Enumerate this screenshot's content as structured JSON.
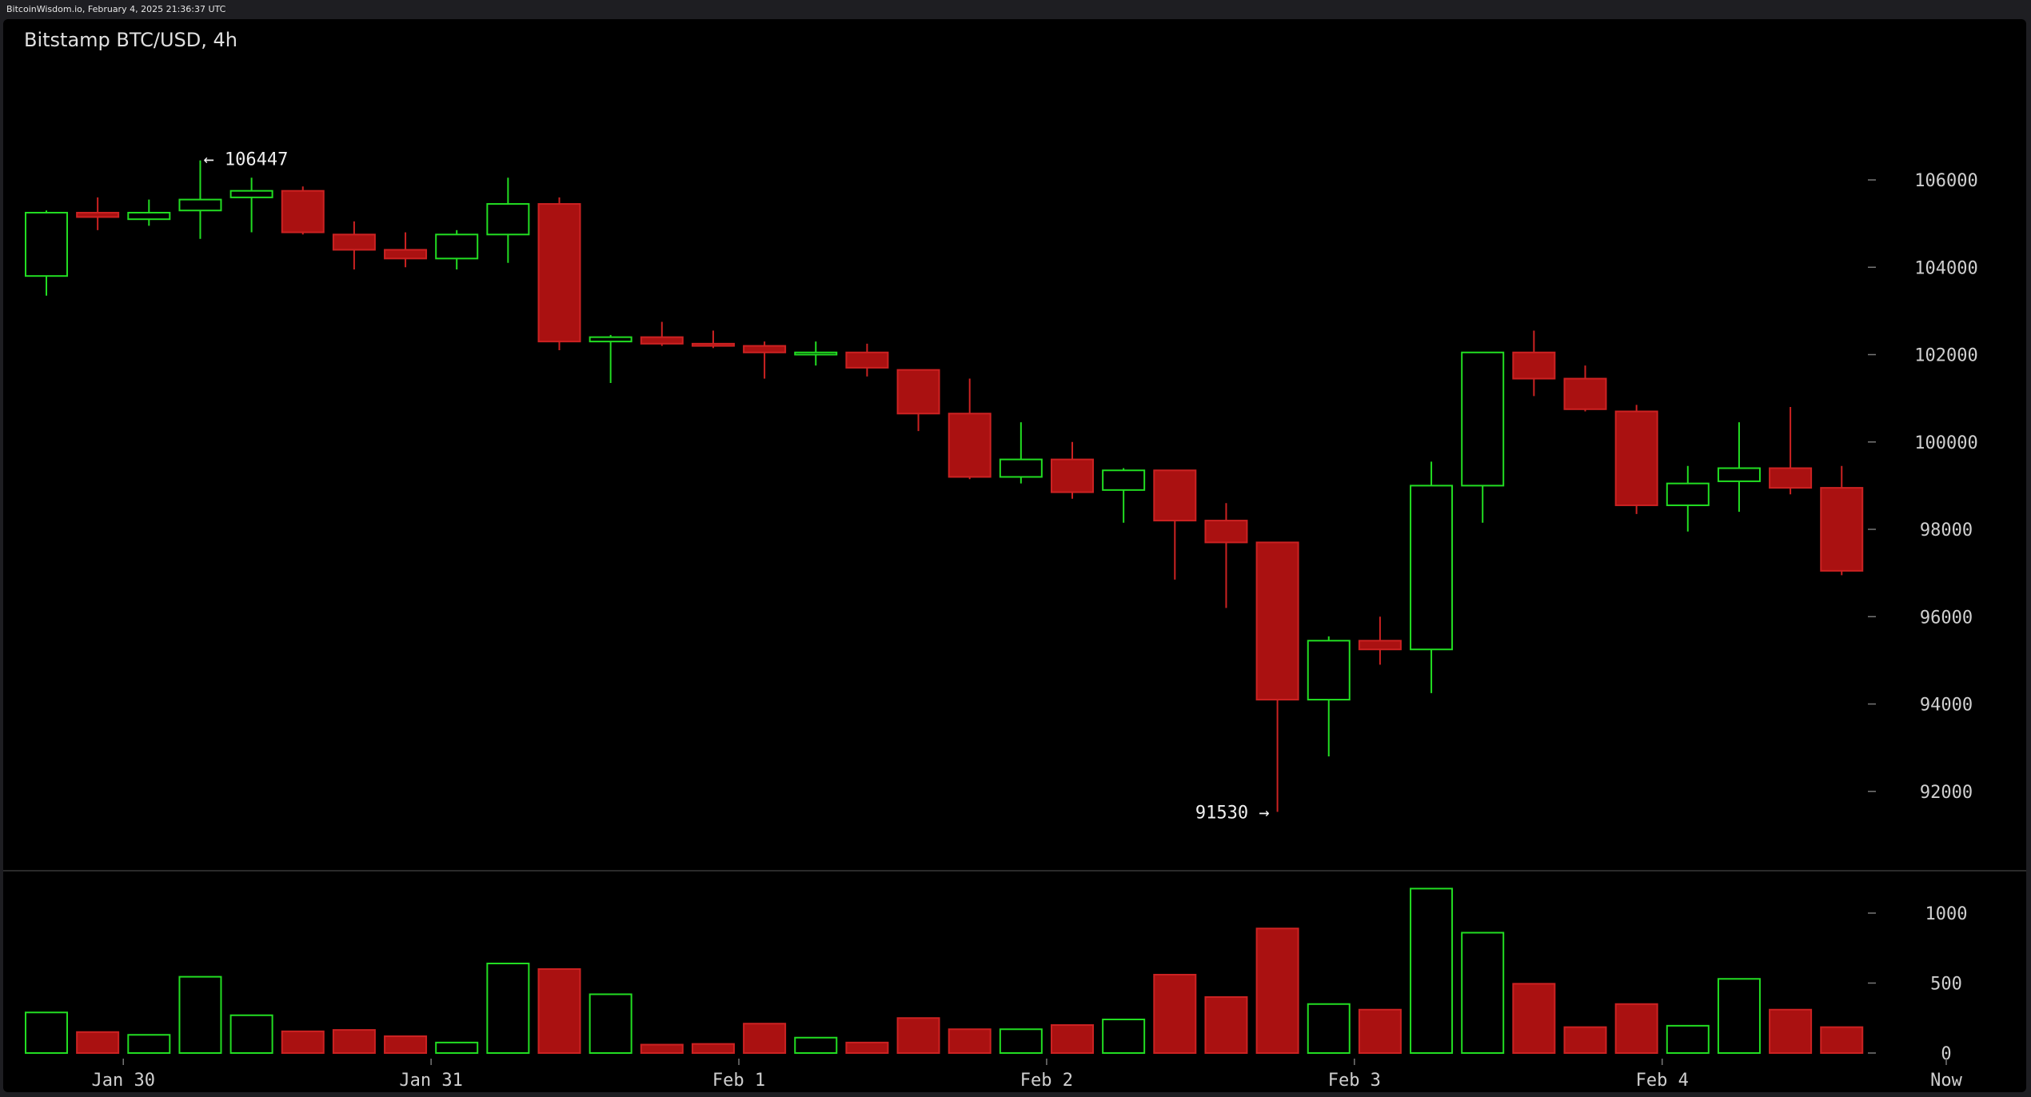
{
  "header": {
    "source_line": "BitcoinWisdom.io, February 4, 2025 21:36:37 UTC",
    "chart_title": "Bitstamp BTC/USD, 4h"
  },
  "chart_data": {
    "type": "candlestick",
    "annotations": {
      "high_label": "← 106447",
      "low_label": "91530 →"
    },
    "price_axis": {
      "ticks": [
        92000,
        94000,
        96000,
        98000,
        100000,
        102000,
        104000,
        106000
      ],
      "range": [
        90000,
        107300
      ]
    },
    "volume_axis": {
      "ticks": [
        0,
        500,
        1000
      ],
      "range": [
        0,
        1200
      ]
    },
    "time_labels": [
      "Jan 30",
      "Jan 31",
      "Feb 1",
      "Feb 2",
      "Feb 3",
      "Feb 4",
      "Now"
    ],
    "colors": {
      "up": "#22dd22",
      "down": "#aa1111",
      "down_stroke": "#cc2222",
      "axis_text": "#cfcfcf"
    },
    "candles": [
      {
        "o": 103800,
        "h": 105300,
        "l": 103350,
        "c": 105250,
        "v": 290
      },
      {
        "o": 105250,
        "h": 105600,
        "l": 104850,
        "c": 105150,
        "v": 150
      },
      {
        "o": 105100,
        "h": 105550,
        "l": 104950,
        "c": 105250,
        "v": 130
      },
      {
        "o": 105300,
        "h": 106447,
        "l": 104650,
        "c": 105550,
        "v": 545
      },
      {
        "o": 105600,
        "h": 106050,
        "l": 104800,
        "c": 105750,
        "v": 270
      },
      {
        "o": 105750,
        "h": 105850,
        "l": 104750,
        "c": 104800,
        "v": 155
      },
      {
        "o": 104750,
        "h": 105050,
        "l": 103950,
        "c": 104400,
        "v": 165
      },
      {
        "o": 104400,
        "h": 104800,
        "l": 104000,
        "c": 104200,
        "v": 120
      },
      {
        "o": 104200,
        "h": 104850,
        "l": 103950,
        "c": 104750,
        "v": 75
      },
      {
        "o": 104750,
        "h": 106050,
        "l": 104100,
        "c": 105450,
        "v": 640
      },
      {
        "o": 105450,
        "h": 105600,
        "l": 102100,
        "c": 102300,
        "v": 600
      },
      {
        "o": 102300,
        "h": 102450,
        "l": 101350,
        "c": 102400,
        "v": 420
      },
      {
        "o": 102400,
        "h": 102750,
        "l": 102200,
        "c": 102250,
        "v": 60
      },
      {
        "o": 102250,
        "h": 102550,
        "l": 102150,
        "c": 102200,
        "v": 65
      },
      {
        "o": 102200,
        "h": 102300,
        "l": 101450,
        "c": 102050,
        "v": 210
      },
      {
        "o": 102000,
        "h": 102300,
        "l": 101750,
        "c": 102050,
        "v": 110
      },
      {
        "o": 102050,
        "h": 102250,
        "l": 101500,
        "c": 101700,
        "v": 75
      },
      {
        "o": 101650,
        "h": 101650,
        "l": 100250,
        "c": 100650,
        "v": 250
      },
      {
        "o": 100650,
        "h": 101450,
        "l": 99150,
        "c": 99200,
        "v": 170
      },
      {
        "o": 99200,
        "h": 100450,
        "l": 99050,
        "c": 99600,
        "v": 170
      },
      {
        "o": 99600,
        "h": 100000,
        "l": 98700,
        "c": 98850,
        "v": 200
      },
      {
        "o": 98900,
        "h": 99400,
        "l": 98150,
        "c": 99350,
        "v": 240
      },
      {
        "o": 99350,
        "h": 99350,
        "l": 96850,
        "c": 98200,
        "v": 560
      },
      {
        "o": 98200,
        "h": 98600,
        "l": 96200,
        "c": 97700,
        "v": 400
      },
      {
        "o": 97700,
        "h": 97700,
        "l": 91530,
        "c": 94100,
        "v": 890
      },
      {
        "o": 94100,
        "h": 95550,
        "l": 92800,
        "c": 95450,
        "v": 350
      },
      {
        "o": 95450,
        "h": 96000,
        "l": 94900,
        "c": 95250,
        "v": 310
      },
      {
        "o": 95250,
        "h": 99550,
        "l": 94250,
        "c": 99000,
        "v": 1175
      },
      {
        "o": 99000,
        "h": 102050,
        "l": 98150,
        "c": 102050,
        "v": 860
      },
      {
        "o": 102050,
        "h": 102550,
        "l": 101050,
        "c": 101450,
        "v": 495
      },
      {
        "o": 101450,
        "h": 101750,
        "l": 100700,
        "c": 100750,
        "v": 185
      },
      {
        "o": 100700,
        "h": 100850,
        "l": 98350,
        "c": 98550,
        "v": 350
      },
      {
        "o": 98550,
        "h": 99450,
        "l": 97950,
        "c": 99050,
        "v": 195
      },
      {
        "o": 99100,
        "h": 100450,
        "l": 98400,
        "c": 99400,
        "v": 530
      },
      {
        "o": 99400,
        "h": 100800,
        "l": 98800,
        "c": 98950,
        "v": 310
      },
      {
        "o": 98950,
        "h": 99450,
        "l": 96950,
        "c": 97050,
        "v": 185
      }
    ]
  }
}
